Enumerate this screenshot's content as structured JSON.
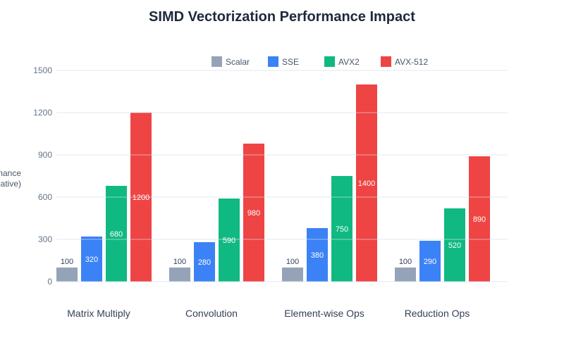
{
  "chart_data": {
    "type": "bar",
    "title": "SIMD Vectorization Performance Impact",
    "ylabel": "Performance (Relative)",
    "xlabel": "",
    "categories": [
      "Matrix Multiply",
      "Convolution",
      "Element-wise Ops",
      "Reduction Ops"
    ],
    "series": [
      {
        "name": "Scalar",
        "color": "#94a3b8",
        "values": [
          100,
          100,
          100,
          100
        ]
      },
      {
        "name": "SSE",
        "color": "#3b82f6",
        "values": [
          320,
          280,
          380,
          290
        ]
      },
      {
        "name": "AVX2",
        "color": "#10b981",
        "values": [
          680,
          590,
          750,
          520
        ]
      },
      {
        "name": "AVX-512",
        "color": "#ef4444",
        "values": [
          1200,
          980,
          1400,
          890
        ]
      }
    ],
    "ylim": [
      0,
      1500
    ],
    "yticks": [
      0,
      300,
      600,
      900,
      1200,
      1500
    ],
    "grid": true,
    "legend": "top"
  }
}
